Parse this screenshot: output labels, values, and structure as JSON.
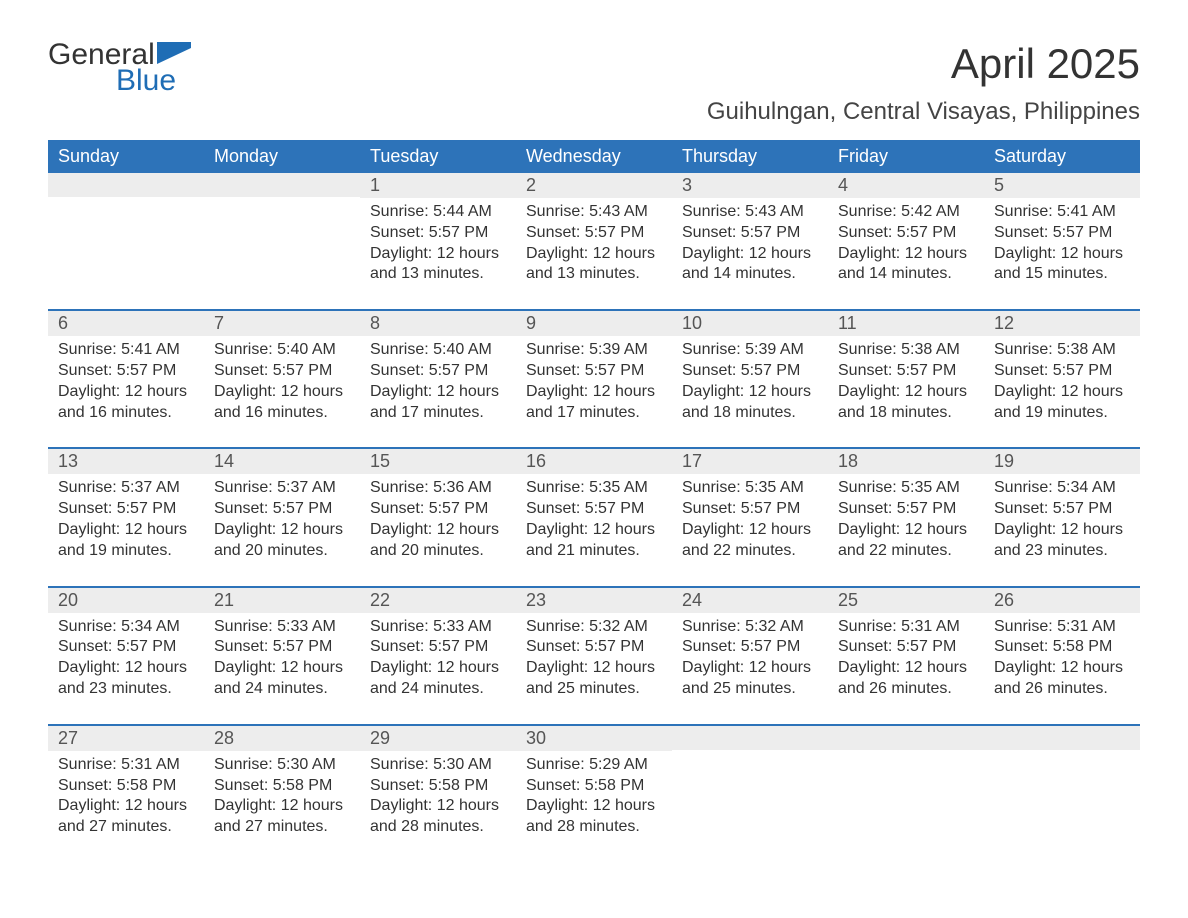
{
  "logo": {
    "word1": "General",
    "word2": "Blue",
    "accent_color": "#1f6db5"
  },
  "title": "April 2025",
  "location": "Guihulngan, Central Visayas, Philippines",
  "columns": [
    "Sunday",
    "Monday",
    "Tuesday",
    "Wednesday",
    "Thursday",
    "Friday",
    "Saturday"
  ],
  "style": {
    "header_bg": "#2d73b9",
    "header_text": "#ffffff",
    "daynum_bg": "#ededed",
    "row_divider": "#2d73b9",
    "body_text": "#333333",
    "title_fontsize": 42,
    "location_fontsize": 24,
    "th_fontsize": 18,
    "daynum_fontsize": 18,
    "cell_fontsize": 16
  },
  "weeks": [
    [
      null,
      null,
      {
        "n": "1",
        "sunrise": "Sunrise: 5:44 AM",
        "sunset": "Sunset: 5:57 PM",
        "daylight1": "Daylight: 12 hours",
        "daylight2": "and 13 minutes."
      },
      {
        "n": "2",
        "sunrise": "Sunrise: 5:43 AM",
        "sunset": "Sunset: 5:57 PM",
        "daylight1": "Daylight: 12 hours",
        "daylight2": "and 13 minutes."
      },
      {
        "n": "3",
        "sunrise": "Sunrise: 5:43 AM",
        "sunset": "Sunset: 5:57 PM",
        "daylight1": "Daylight: 12 hours",
        "daylight2": "and 14 minutes."
      },
      {
        "n": "4",
        "sunrise": "Sunrise: 5:42 AM",
        "sunset": "Sunset: 5:57 PM",
        "daylight1": "Daylight: 12 hours",
        "daylight2": "and 14 minutes."
      },
      {
        "n": "5",
        "sunrise": "Sunrise: 5:41 AM",
        "sunset": "Sunset: 5:57 PM",
        "daylight1": "Daylight: 12 hours",
        "daylight2": "and 15 minutes."
      }
    ],
    [
      {
        "n": "6",
        "sunrise": "Sunrise: 5:41 AM",
        "sunset": "Sunset: 5:57 PM",
        "daylight1": "Daylight: 12 hours",
        "daylight2": "and 16 minutes."
      },
      {
        "n": "7",
        "sunrise": "Sunrise: 5:40 AM",
        "sunset": "Sunset: 5:57 PM",
        "daylight1": "Daylight: 12 hours",
        "daylight2": "and 16 minutes."
      },
      {
        "n": "8",
        "sunrise": "Sunrise: 5:40 AM",
        "sunset": "Sunset: 5:57 PM",
        "daylight1": "Daylight: 12 hours",
        "daylight2": "and 17 minutes."
      },
      {
        "n": "9",
        "sunrise": "Sunrise: 5:39 AM",
        "sunset": "Sunset: 5:57 PM",
        "daylight1": "Daylight: 12 hours",
        "daylight2": "and 17 minutes."
      },
      {
        "n": "10",
        "sunrise": "Sunrise: 5:39 AM",
        "sunset": "Sunset: 5:57 PM",
        "daylight1": "Daylight: 12 hours",
        "daylight2": "and 18 minutes."
      },
      {
        "n": "11",
        "sunrise": "Sunrise: 5:38 AM",
        "sunset": "Sunset: 5:57 PM",
        "daylight1": "Daylight: 12 hours",
        "daylight2": "and 18 minutes."
      },
      {
        "n": "12",
        "sunrise": "Sunrise: 5:38 AM",
        "sunset": "Sunset: 5:57 PM",
        "daylight1": "Daylight: 12 hours",
        "daylight2": "and 19 minutes."
      }
    ],
    [
      {
        "n": "13",
        "sunrise": "Sunrise: 5:37 AM",
        "sunset": "Sunset: 5:57 PM",
        "daylight1": "Daylight: 12 hours",
        "daylight2": "and 19 minutes."
      },
      {
        "n": "14",
        "sunrise": "Sunrise: 5:37 AM",
        "sunset": "Sunset: 5:57 PM",
        "daylight1": "Daylight: 12 hours",
        "daylight2": "and 20 minutes."
      },
      {
        "n": "15",
        "sunrise": "Sunrise: 5:36 AM",
        "sunset": "Sunset: 5:57 PM",
        "daylight1": "Daylight: 12 hours",
        "daylight2": "and 20 minutes."
      },
      {
        "n": "16",
        "sunrise": "Sunrise: 5:35 AM",
        "sunset": "Sunset: 5:57 PM",
        "daylight1": "Daylight: 12 hours",
        "daylight2": "and 21 minutes."
      },
      {
        "n": "17",
        "sunrise": "Sunrise: 5:35 AM",
        "sunset": "Sunset: 5:57 PM",
        "daylight1": "Daylight: 12 hours",
        "daylight2": "and 22 minutes."
      },
      {
        "n": "18",
        "sunrise": "Sunrise: 5:35 AM",
        "sunset": "Sunset: 5:57 PM",
        "daylight1": "Daylight: 12 hours",
        "daylight2": "and 22 minutes."
      },
      {
        "n": "19",
        "sunrise": "Sunrise: 5:34 AM",
        "sunset": "Sunset: 5:57 PM",
        "daylight1": "Daylight: 12 hours",
        "daylight2": "and 23 minutes."
      }
    ],
    [
      {
        "n": "20",
        "sunrise": "Sunrise: 5:34 AM",
        "sunset": "Sunset: 5:57 PM",
        "daylight1": "Daylight: 12 hours",
        "daylight2": "and 23 minutes."
      },
      {
        "n": "21",
        "sunrise": "Sunrise: 5:33 AM",
        "sunset": "Sunset: 5:57 PM",
        "daylight1": "Daylight: 12 hours",
        "daylight2": "and 24 minutes."
      },
      {
        "n": "22",
        "sunrise": "Sunrise: 5:33 AM",
        "sunset": "Sunset: 5:57 PM",
        "daylight1": "Daylight: 12 hours",
        "daylight2": "and 24 minutes."
      },
      {
        "n": "23",
        "sunrise": "Sunrise: 5:32 AM",
        "sunset": "Sunset: 5:57 PM",
        "daylight1": "Daylight: 12 hours",
        "daylight2": "and 25 minutes."
      },
      {
        "n": "24",
        "sunrise": "Sunrise: 5:32 AM",
        "sunset": "Sunset: 5:57 PM",
        "daylight1": "Daylight: 12 hours",
        "daylight2": "and 25 minutes."
      },
      {
        "n": "25",
        "sunrise": "Sunrise: 5:31 AM",
        "sunset": "Sunset: 5:57 PM",
        "daylight1": "Daylight: 12 hours",
        "daylight2": "and 26 minutes."
      },
      {
        "n": "26",
        "sunrise": "Sunrise: 5:31 AM",
        "sunset": "Sunset: 5:58 PM",
        "daylight1": "Daylight: 12 hours",
        "daylight2": "and 26 minutes."
      }
    ],
    [
      {
        "n": "27",
        "sunrise": "Sunrise: 5:31 AM",
        "sunset": "Sunset: 5:58 PM",
        "daylight1": "Daylight: 12 hours",
        "daylight2": "and 27 minutes."
      },
      {
        "n": "28",
        "sunrise": "Sunrise: 5:30 AM",
        "sunset": "Sunset: 5:58 PM",
        "daylight1": "Daylight: 12 hours",
        "daylight2": "and 27 minutes."
      },
      {
        "n": "29",
        "sunrise": "Sunrise: 5:30 AM",
        "sunset": "Sunset: 5:58 PM",
        "daylight1": "Daylight: 12 hours",
        "daylight2": "and 28 minutes."
      },
      {
        "n": "30",
        "sunrise": "Sunrise: 5:29 AM",
        "sunset": "Sunset: 5:58 PM",
        "daylight1": "Daylight: 12 hours",
        "daylight2": "and 28 minutes."
      },
      null,
      null,
      null
    ]
  ]
}
